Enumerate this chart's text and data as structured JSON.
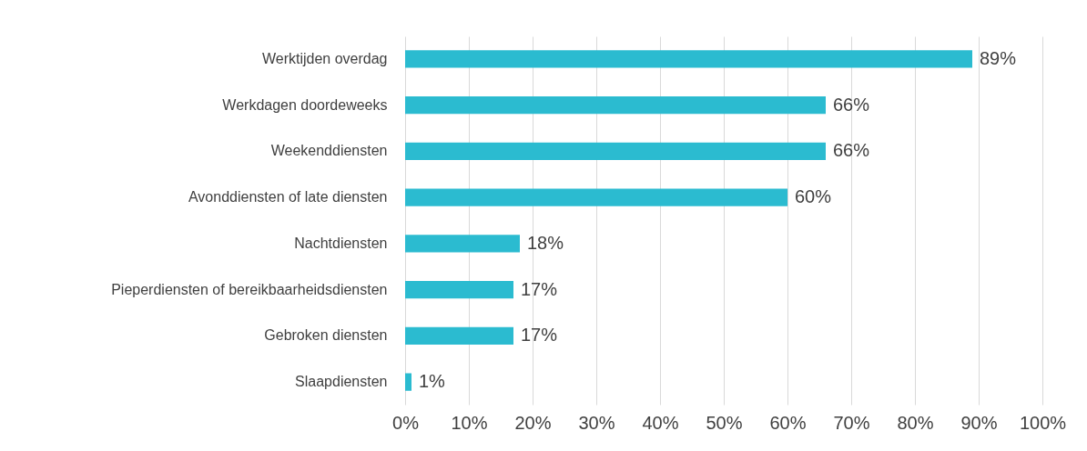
{
  "chart_data": {
    "type": "bar",
    "orientation": "horizontal",
    "categories": [
      "Werktijden overdag",
      "Werkdagen doordeweeks",
      "Weekenddiensten",
      "Avonddiensten of late diensten",
      "Nachtdiensten",
      "Pieperdiensten of bereikbaarheidsdiensten",
      "Gebroken diensten",
      "Slaapdiensten"
    ],
    "values": [
      89,
      66,
      66,
      60,
      18,
      17,
      17,
      1
    ],
    "value_labels": [
      "89%",
      "66%",
      "66%",
      "60%",
      "18%",
      "17%",
      "17%",
      "1%"
    ],
    "color": "#2bbbd0",
    "xlim": [
      0,
      100
    ],
    "xticks": [
      {
        "value": 0,
        "label": "0%"
      },
      {
        "value": 10,
        "label": "10%"
      },
      {
        "value": 20,
        "label": "20%"
      },
      {
        "value": 30,
        "label": "30%"
      },
      {
        "value": 40,
        "label": "40%"
      },
      {
        "value": 50,
        "label": "50%"
      },
      {
        "value": 60,
        "label": "60%"
      },
      {
        "value": 70,
        "label": "70%"
      },
      {
        "value": 80,
        "label": "80%"
      },
      {
        "value": 90,
        "label": "90%"
      },
      {
        "value": 100,
        "label": "100%"
      }
    ],
    "grid": "x"
  }
}
